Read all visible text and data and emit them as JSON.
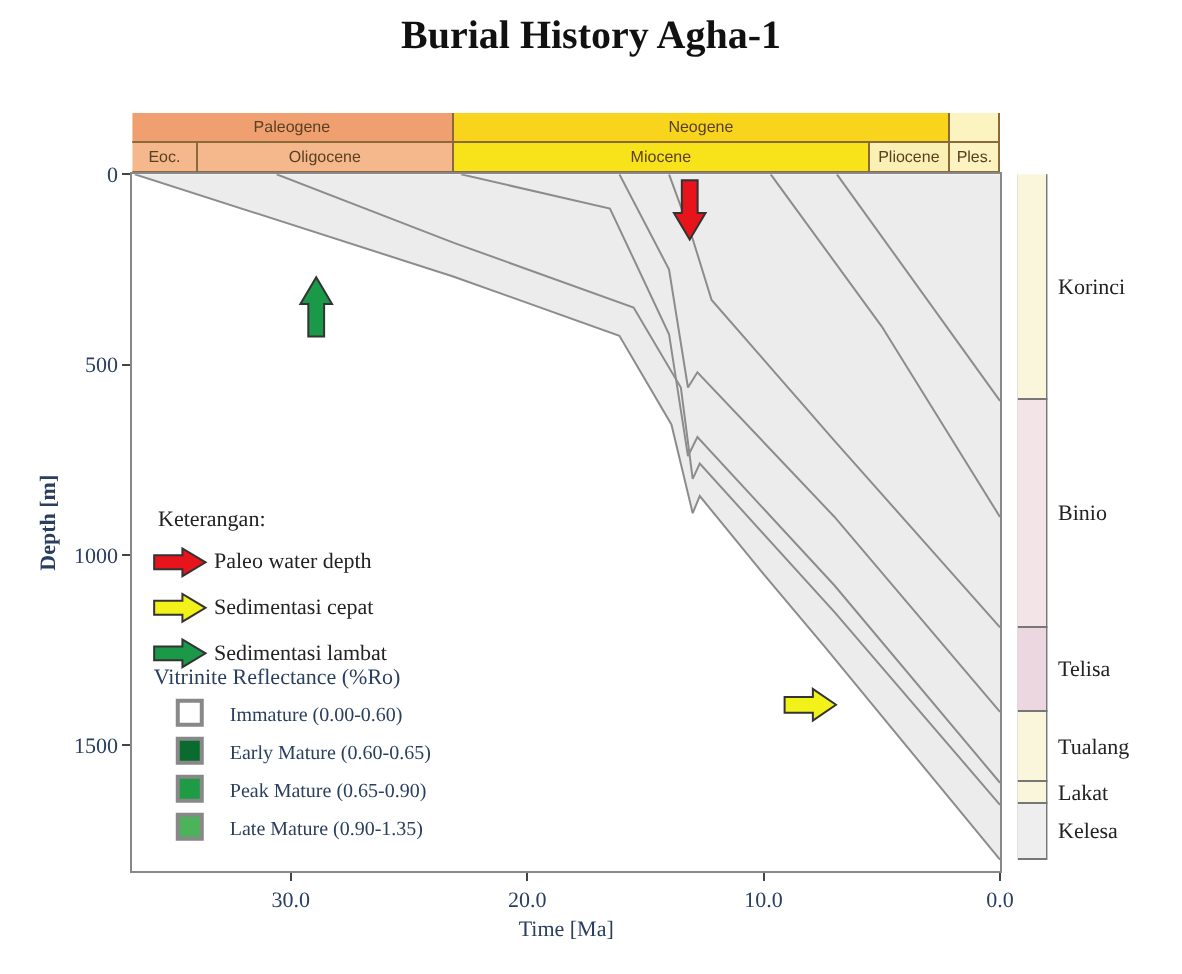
{
  "chart_data": [
    {
      "type": "bar",
      "orientation": "horizontal",
      "stacked": true,
      "title": "Burial History Agha-1",
      "categories": [
        null,
        null
      ],
      "xlim": [
        36.7,
        0
      ],
      "tick_labels": false,
      "series": [
        {
          "values": [
            2.1,
            2.1
          ],
          "colors": [
            "#fbf3c0",
            "#fbf3c0"
          ],
          "value_labels": [
            null,
            "Ples."
          ]
        },
        {
          "values": [
            21.0,
            3.4
          ],
          "colors": [
            "#f8d51c",
            "#fbf0b4"
          ],
          "value_labels": [
            "Neogene",
            "Pliocene"
          ]
        },
        {
          "values": [
            13.6,
            17.6
          ],
          "colors": [
            "#f0a070",
            "#f8e21a"
          ],
          "value_labels": [
            "Paleogene",
            "Miocene"
          ]
        },
        {
          "values": [
            null,
            10.8
          ],
          "colors": [
            null,
            "#f5b88c"
          ],
          "value_labels": [
            null,
            "Oligocene"
          ]
        },
        {
          "values": [
            null,
            2.8
          ],
          "colors": [
            null,
            "#f5b88c"
          ],
          "value_labels": [
            null,
            "Eoc."
          ]
        }
      ]
    },
    {
      "type": "line",
      "xlabel": "Time [Ma]",
      "ylabel": "Depth [m]",
      "xlim": [
        36.7,
        0
      ],
      "ylim": [
        1830,
        0
      ],
      "xticks": [
        {
          "value": 30,
          "label": "30.0"
        },
        {
          "value": 20,
          "label": "20.0"
        },
        {
          "value": 10,
          "label": "10.0"
        },
        {
          "value": 0,
          "label": "0.0"
        }
      ],
      "yticks": [
        0,
        500,
        1000,
        1500
      ],
      "legend": "bottom left",
      "legend_title": "Vitrinite Reflectance (%Ro)",
      "annotations": [
        "Keterangan:",
        "Paleo water depth",
        "Sedimentasi cepat",
        "Sedimentasi lambat"
      ],
      "series": [
        {
          "type": "area",
          "color": "#8c8c8c",
          "x": [
            36.6,
            23.1,
            16.1,
            13.9,
            13.0,
            12.7,
            10.0,
            7.4,
            0
          ],
          "values": [
            0,
            269,
            424,
            657,
            890,
            845,
            1050,
            1242,
            1800
          ]
        },
        {
          "color": "#8c8c8c",
          "x": [
            30.6,
            23.1,
            15.5,
            13.5,
            13.0,
            12.7,
            7.0,
            0
          ],
          "values": [
            0,
            180,
            350,
            560,
            800,
            760,
            1150,
            1656
          ]
        },
        {
          "color": "#8c8c8c",
          "x": [
            22.8,
            16.5,
            14.0,
            13.2,
            12.8,
            7.0,
            0
          ],
          "values": [
            0,
            90,
            420,
            740,
            690,
            1080,
            1598
          ]
        },
        {
          "color": "#8c8c8c",
          "x": [
            16.1,
            14.0,
            13.2,
            12.8,
            7.0,
            0
          ],
          "values": [
            0,
            250,
            560,
            520,
            900,
            1412
          ]
        },
        {
          "color": "#8c8c8c",
          "x": [
            14.0,
            13.0,
            12.2,
            7.0,
            0
          ],
          "values": [
            0,
            170,
            330,
            700,
            1190
          ]
        },
        {
          "color": "#8c8c8c",
          "x": [
            9.7,
            5.0,
            0
          ],
          "values": [
            0,
            400,
            900
          ]
        },
        {
          "color": "#8c8c8c",
          "x": [
            6.9,
            0
          ],
          "values": [
            0,
            595
          ]
        },
        {
          "type": "bar",
          "name": "Immature (0.00-0.60)",
          "color": "#ffffff"
        },
        {
          "type": "bar",
          "name": "Early Mature (0.60-0.65)",
          "color": "#0b6b2e"
        },
        {
          "type": "bar",
          "name": "Peak Mature (0.65-0.90)",
          "color": "#1f9a45"
        },
        {
          "type": "bar",
          "name": "Late Mature (0.90-1.35)",
          "color": "#4cb35a"
        }
      ]
    },
    {
      "type": "bar",
      "stacked": true,
      "categories": [
        null
      ],
      "ylim": [
        1830,
        0
      ],
      "tick_labels": false,
      "series": [
        {
          "name": "Korinci",
          "color": "#faf6dc",
          "values": [
            595
          ]
        },
        {
          "name": "Binio",
          "color": "#f3e4e8",
          "values": [
            595
          ]
        },
        {
          "name": "Telisa",
          "color": "#ecd6df",
          "values": [
            222
          ]
        },
        {
          "name": "Tualang",
          "color": "#faf6dc",
          "values": [
            186
          ]
        },
        {
          "name": "Lakat",
          "color": "#faf6dc",
          "values": [
            58
          ]
        },
        {
          "name": "Kelesa",
          "color": "#eeeeee",
          "values": [
            144
          ]
        }
      ]
    }
  ]
}
